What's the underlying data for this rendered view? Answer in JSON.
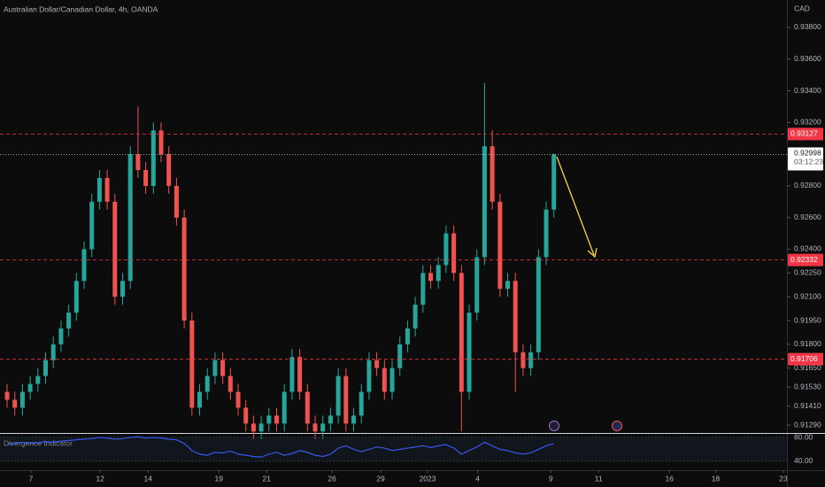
{
  "chart_data": {
    "type": "candlestick",
    "title": "Australian Dollar/Canadian Dollar, 4h, OANDA",
    "currency": "CAD",
    "up_color": "#26a69a",
    "down_color": "#ef5350",
    "open": [
      0.915,
      0.9145,
      0.914,
      0.915,
      0.9155,
      0.916,
      0.917,
      0.918,
      0.919,
      0.92,
      0.922,
      0.924,
      0.927,
      0.9285,
      0.927,
      0.921,
      0.922,
      0.93,
      0.929,
      0.928,
      0.9315,
      0.93,
      0.928,
      0.926,
      0.9195,
      0.914,
      0.915,
      0.916,
      0.917,
      0.916,
      0.915,
      0.914,
      0.913,
      0.9125,
      0.913,
      0.9135,
      0.913,
      0.915,
      0.9172,
      0.915,
      0.913,
      0.9125,
      0.913,
      0.9135,
      0.916,
      0.913,
      0.9135,
      0.915,
      0.917,
      0.9165,
      0.915,
      0.9165,
      0.918,
      0.919,
      0.9205,
      0.9225,
      0.922,
      0.923,
      0.925,
      0.9225,
      0.915,
      0.92,
      0.9235,
      0.9305,
      0.927,
      0.9215,
      0.922,
      0.9175,
      0.9165,
      0.9175,
      0.9235,
      0.9265
    ],
    "high": [
      0.9155,
      0.915,
      0.9155,
      0.916,
      0.9165,
      0.9175,
      0.9185,
      0.9195,
      0.9205,
      0.9225,
      0.9245,
      0.9275,
      0.929,
      0.929,
      0.9275,
      0.9225,
      0.9305,
      0.933,
      0.9295,
      0.932,
      0.932,
      0.9305,
      0.9285,
      0.9265,
      0.92,
      0.9155,
      0.9165,
      0.9175,
      0.9175,
      0.9165,
      0.9155,
      0.9145,
      0.9135,
      0.9135,
      0.914,
      0.914,
      0.9155,
      0.9177,
      0.9177,
      0.9155,
      0.9135,
      0.9135,
      0.914,
      0.9165,
      0.9165,
      0.914,
      0.9155,
      0.9175,
      0.9175,
      0.917,
      0.917,
      0.9185,
      0.9195,
      0.921,
      0.923,
      0.923,
      0.9235,
      0.9255,
      0.9255,
      0.923,
      0.9205,
      0.924,
      0.9345,
      0.9315,
      0.9275,
      0.9225,
      0.9225,
      0.918,
      0.918,
      0.924,
      0.927,
      0.93005
    ],
    "low": [
      0.914,
      0.9135,
      0.9135,
      0.9145,
      0.915,
      0.9155,
      0.9165,
      0.9175,
      0.9185,
      0.9195,
      0.9215,
      0.9235,
      0.9265,
      0.9265,
      0.9205,
      0.9205,
      0.9215,
      0.9285,
      0.9275,
      0.9275,
      0.9295,
      0.9275,
      0.9255,
      0.919,
      0.9135,
      0.9135,
      0.9145,
      0.9155,
      0.9155,
      0.9145,
      0.9135,
      0.9125,
      0.912,
      0.912,
      0.9125,
      0.9125,
      0.9125,
      0.9145,
      0.9145,
      0.9125,
      0.912,
      0.912,
      0.9125,
      0.913,
      0.9125,
      0.9125,
      0.913,
      0.9145,
      0.916,
      0.9145,
      0.9145,
      0.916,
      0.9175,
      0.9185,
      0.92,
      0.9215,
      0.9215,
      0.9225,
      0.922,
      0.9125,
      0.9145,
      0.9195,
      0.923,
      0.9265,
      0.921,
      0.921,
      0.915,
      0.916,
      0.916,
      0.917,
      0.923,
      0.926
    ],
    "close": [
      0.9145,
      0.914,
      0.915,
      0.9155,
      0.916,
      0.917,
      0.918,
      0.919,
      0.92,
      0.922,
      0.924,
      0.927,
      0.9285,
      0.927,
      0.921,
      0.922,
      0.93,
      0.929,
      0.928,
      0.9315,
      0.93,
      0.928,
      0.926,
      0.9195,
      0.914,
      0.915,
      0.916,
      0.917,
      0.916,
      0.915,
      0.914,
      0.913,
      0.9125,
      0.913,
      0.9135,
      0.913,
      0.915,
      0.9172,
      0.915,
      0.913,
      0.9125,
      0.913,
      0.9135,
      0.916,
      0.913,
      0.9135,
      0.915,
      0.917,
      0.9165,
      0.915,
      0.9165,
      0.918,
      0.919,
      0.9205,
      0.9225,
      0.922,
      0.923,
      0.925,
      0.9225,
      0.915,
      0.92,
      0.9235,
      0.9305,
      0.927,
      0.9215,
      0.922,
      0.9175,
      0.9165,
      0.9175,
      0.9235,
      0.9265,
      0.92998
    ],
    "xlim": [
      -0.92,
      100.8
    ],
    "xticks": [
      {
        "value": 3.1,
        "label": "7"
      },
      {
        "value": 12.1,
        "label": "12"
      },
      {
        "value": 18.3,
        "label": "14"
      },
      {
        "value": 27.5,
        "label": "19"
      },
      {
        "value": 33.7,
        "label": "21"
      },
      {
        "value": 42.2,
        "label": "26"
      },
      {
        "value": 48.5,
        "label": "29"
      },
      {
        "value": 54.6,
        "label": "2023"
      },
      {
        "value": 61.1,
        "label": "4"
      },
      {
        "value": 70.6,
        "label": "9"
      },
      {
        "value": 76.8,
        "label": "11"
      },
      {
        "value": 86,
        "label": "16"
      },
      {
        "value": 92,
        "label": "18"
      },
      {
        "value": 100.8,
        "label": "23"
      }
    ],
    "ylim": [
      0.91246,
      0.93973
    ],
    "yticks": [
      {
        "value": 0.938,
        "label": "0.93800"
      },
      {
        "value": 0.936,
        "label": "0.93600"
      },
      {
        "value": 0.934,
        "label": "0.93400"
      },
      {
        "value": 0.932,
        "label": "0.93200"
      },
      {
        "value": 0.928,
        "label": "0.92800"
      },
      {
        "value": 0.926,
        "label": "0.92600"
      },
      {
        "value": 0.924,
        "label": "0.92400"
      },
      {
        "value": 0.9225,
        "label": "0.92250"
      },
      {
        "value": 0.921,
        "label": "0.92100"
      },
      {
        "value": 0.9195,
        "label": "0.91950"
      },
      {
        "value": 0.918,
        "label": "0.91800"
      },
      {
        "value": 0.9165,
        "label": "0.91650"
      },
      {
        "value": 0.9153,
        "label": "0.91530"
      },
      {
        "value": 0.9141,
        "label": "0.91410"
      },
      {
        "value": 0.9129,
        "label": "0.91290"
      }
    ],
    "levels": [
      0.93127,
      0.92332,
      0.91706
    ],
    "level_color": "#f23645",
    "last_price": 0.92998,
    "countdown": "03:12:23",
    "indicator": {
      "name": "Divergence Indicator",
      "color": "#3d5afe",
      "ylim": [
        25,
        86
      ],
      "yticks": [
        {
          "value": 80,
          "label": "80.00"
        },
        {
          "value": 40,
          "label": "40.00"
        }
      ],
      "values": [
        68,
        70,
        72,
        70,
        71,
        73,
        72,
        74,
        75,
        76,
        77,
        78,
        80,
        79,
        77,
        78,
        80,
        81,
        79,
        80,
        79,
        77,
        76,
        70,
        58,
        52,
        50,
        55,
        54,
        57,
        52,
        50,
        48,
        47,
        52,
        55,
        50,
        53,
        58,
        55,
        50,
        48,
        52,
        62,
        66,
        60,
        56,
        60,
        64,
        62,
        58,
        60,
        62,
        64,
        66,
        63,
        66,
        68,
        62,
        52,
        58,
        64,
        72,
        66,
        60,
        58,
        54,
        52,
        54,
        60,
        66,
        70
      ]
    }
  }
}
